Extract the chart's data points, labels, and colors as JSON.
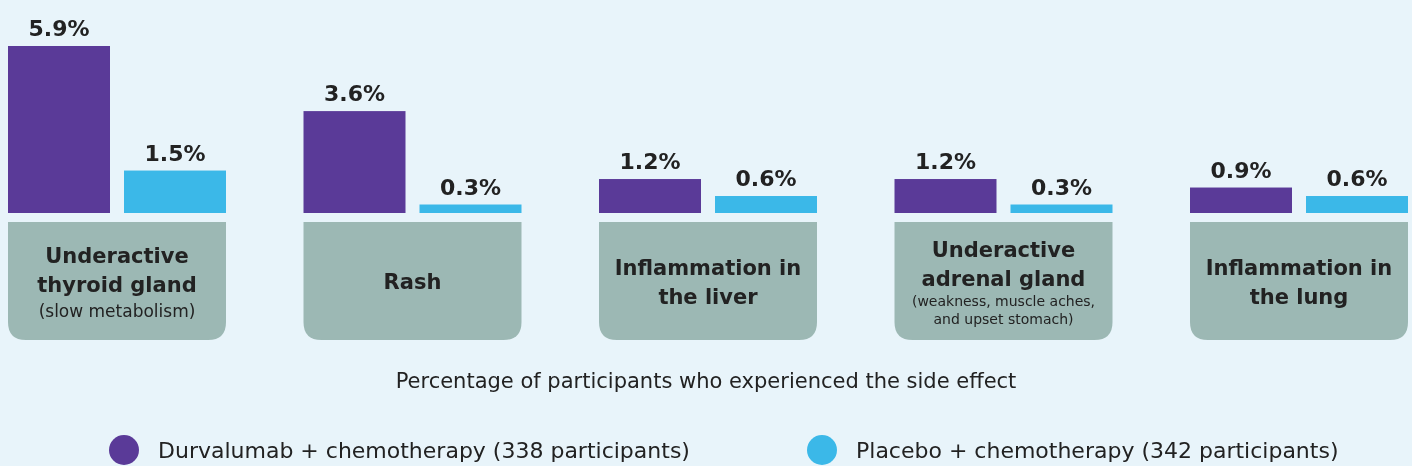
{
  "chart_data": {
    "type": "bar",
    "xlabel": "Percentage of participants who experienced the side effect",
    "categories": [
      "Underactive thyroid gland (slow metabolism)",
      "Rash",
      "Inflammation in the liver",
      "Underactive adrenal gland (weakness, muscle aches, and upset stomach)",
      "Inflammation in the lung"
    ],
    "series": [
      {
        "name": "Durvalumab + chemotherapy (338 participants)",
        "color": "#5a3a98",
        "values": [
          5.9,
          3.6,
          1.2,
          1.2,
          0.9
        ],
        "value_labels": [
          "5.9%",
          "3.6%",
          "1.2%",
          "1.2%",
          "0.9%"
        ]
      },
      {
        "name": "Placebo + chemotherapy (342 participants)",
        "color": "#3bb8e8",
        "values": [
          1.5,
          0.3,
          0.6,
          0.3,
          0.6
        ],
        "value_labels": [
          "1.5%",
          "0.3%",
          "0.6%",
          "0.3%",
          "0.6%"
        ]
      }
    ],
    "legend": "bottom"
  }
}
